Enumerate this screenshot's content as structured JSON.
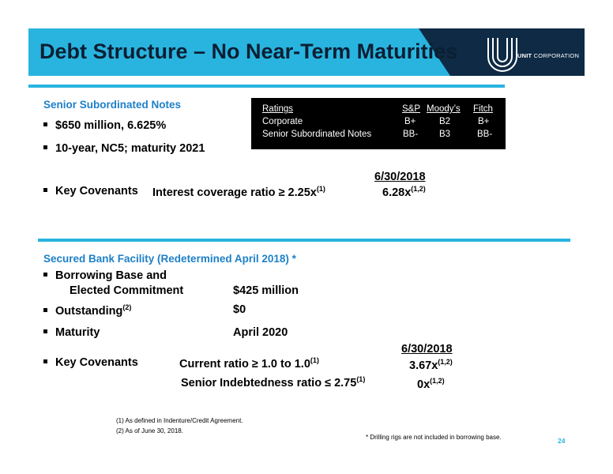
{
  "header": {
    "title": "Debt Structure – No Near-Term Maturities",
    "logo_text_bold": "UNIT",
    "logo_text_rest": " CORPORATION"
  },
  "senior_notes": {
    "section_title": "Senior Subordinated Notes",
    "bullets": [
      "$650 million, 6.625%",
      "10-year, NC5; maturity 2021"
    ],
    "key_covenants_label": "Key Covenants",
    "covenant_text": "Interest coverage ratio ≥ 2.25x",
    "covenant_sup": "(1)",
    "date_header": "6/30/2018",
    "covenant_value": "6.28x",
    "covenant_value_sup": "(1,2)"
  },
  "ratings_table": {
    "headers": [
      "Ratings",
      "S&P",
      "Moody’s",
      "Fitch"
    ],
    "rows": [
      [
        "Corporate",
        "B+",
        "B2",
        "B+"
      ],
      [
        "Senior Subordinated Notes",
        "BB-",
        "B3",
        "BB-"
      ]
    ]
  },
  "bank_facility": {
    "section_title": "Secured Bank Facility (Redetermined April 2018) *",
    "borrowing_label_1": "Borrowing Base and",
    "borrowing_label_2": "Elected Commitment",
    "borrowing_value": "$425 million",
    "outstanding_label": "Outstanding",
    "outstanding_sup": "(2)",
    "outstanding_value": "$0",
    "maturity_label": "Maturity",
    "maturity_value": "April 2020",
    "key_covenants_label": "Key Covenants",
    "date_header": "6/30/2018",
    "cov1_text": "Current ratio ≥ 1.0 to 1.0",
    "cov1_sup": "(1)",
    "cov1_value": "3.67x",
    "cov1_value_sup": "(1,2)",
    "cov2_text": "Senior Indebtedness ratio ≤ 2.75",
    "cov2_sup": "(1)",
    "cov2_value": "0x",
    "cov2_value_sup": "(1,2)"
  },
  "footnotes": {
    "fn1": "(1)   As defined in Indenture/Credit Agreement.",
    "fn2": "(2)   As of June 30, 2018.",
    "asterisk": "*  Drilling rigs are not included in borrowing base."
  },
  "page_number": "24",
  "colors": {
    "accent": "#29b4df",
    "dark_band": "#0e2a44",
    "section_title": "#1e80c8"
  }
}
